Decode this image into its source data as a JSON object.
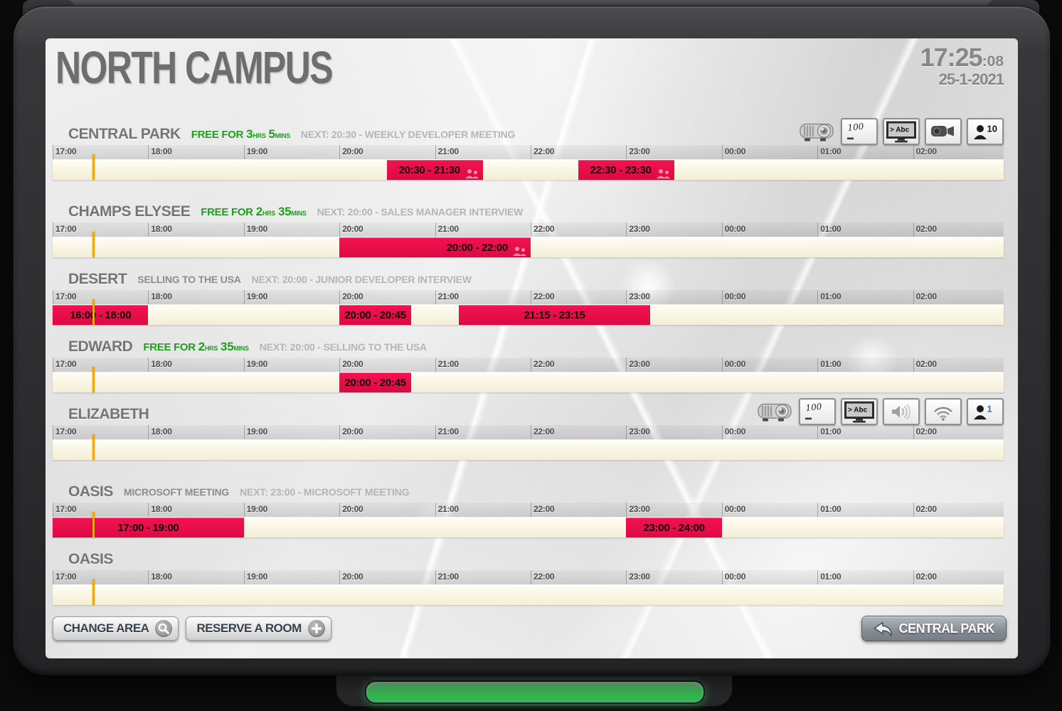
{
  "header": {
    "title": "NORTH CAMPUS",
    "time": "17:25",
    "seconds": ":08",
    "date": "25-1-2021"
  },
  "timeline": {
    "hour_labels": [
      "17:00",
      "18:00",
      "19:00",
      "20:00",
      "21:00",
      "22:00",
      "23:00",
      "00:00",
      "01:00",
      "02:00"
    ]
  },
  "rooms": [
    {
      "name": "CENTRAL PARK",
      "status": {
        "type": "free",
        "prefix": "FREE FOR",
        "hours": "3",
        "hours_unit": "HRS",
        "minutes": "5",
        "minutes_unit": "MINS"
      },
      "next": "NEXT: 20:30 - WEEKLY DEVELOPER MEETING",
      "amenities": [
        {
          "icon": "projector"
        },
        {
          "icon": "whiteboard",
          "value": "100"
        },
        {
          "icon": "display-text",
          "value": "> Abc"
        },
        {
          "icon": "video-camera"
        },
        {
          "icon": "capacity",
          "value": "10",
          "value_color": "#141414"
        }
      ],
      "bookings": [
        {
          "label": "20:30 - 21:30",
          "start": "20:30",
          "end": "21:30",
          "attendees_icon": true
        },
        {
          "label": "22:30 - 23:30",
          "start": "22:30",
          "end": "23:30",
          "attendees_icon": true
        }
      ]
    },
    {
      "name": "CHAMPS ELYSEE",
      "status": {
        "type": "free",
        "prefix": "FREE FOR",
        "hours": "2",
        "hours_unit": "HRS",
        "minutes": "35",
        "minutes_unit": "MINS"
      },
      "next": "NEXT: 20:00 - SALES MANAGER INTERVIEW",
      "amenities": [],
      "bookings": [
        {
          "label": "20:00 - 22:00",
          "start": "20:00",
          "end": "22:00",
          "attendees_icon": true
        }
      ]
    },
    {
      "name": "DESERT",
      "status": {
        "type": "busy",
        "label": "SELLING TO THE USA"
      },
      "next": "NEXT: 20:00 - JUNIOR DEVELOPER INTERVIEW",
      "amenities": [],
      "bookings": [
        {
          "label": "16:00 - 18:00",
          "start": "16:00",
          "end": "18:00"
        },
        {
          "label": "20:00 - 20:45",
          "start": "20:00",
          "end": "20:45"
        },
        {
          "label": "21:15 - 23:15",
          "start": "21:15",
          "end": "23:15"
        }
      ]
    },
    {
      "name": "EDWARD",
      "status": {
        "type": "free",
        "prefix": "FREE FOR",
        "hours": "2",
        "hours_unit": "HRS",
        "minutes": "35",
        "minutes_unit": "MINS"
      },
      "next": "NEXT: 20:00 - SELLING TO THE USA",
      "amenities": [],
      "bookings": [
        {
          "label": "20:00 - 20:45",
          "start": "20:00",
          "end": "20:45"
        }
      ]
    },
    {
      "name": "ELIZABETH",
      "status": null,
      "next": "",
      "amenities": [
        {
          "icon": "projector"
        },
        {
          "icon": "whiteboard",
          "value": "100"
        },
        {
          "icon": "display-text",
          "value": "> Abc"
        },
        {
          "icon": "speaker"
        },
        {
          "icon": "wifi"
        },
        {
          "icon": "capacity",
          "value": "1",
          "value_color": "#3a6db8"
        }
      ],
      "bookings": []
    },
    {
      "name": "OASIS",
      "status": {
        "type": "busy",
        "label": "MICROSOFT MEETING"
      },
      "next": "NEXT: 23:00 - MICROSOFT MEETING",
      "amenities": [],
      "bookings": [
        {
          "label": "17:00 - 19:00",
          "start": "17:00",
          "end": "19:00"
        },
        {
          "label": "23:00 - 24:00",
          "start": "23:00",
          "end": "24:00"
        }
      ]
    },
    {
      "name": "OASIS",
      "status": null,
      "next": "",
      "amenities": [],
      "bookings": []
    }
  ],
  "footer": {
    "change_area_label": "CHANGE AREA",
    "reserve_room_label": "RESERVE A ROOM",
    "room_shortcut_label": "CENTRAL PARK"
  },
  "colors": {
    "booking_red": "#e90c46",
    "free_green": "#1f9e1f",
    "now_line": "#eda912",
    "strip_cream": "#f3eed7",
    "led_green": "#46da62"
  }
}
